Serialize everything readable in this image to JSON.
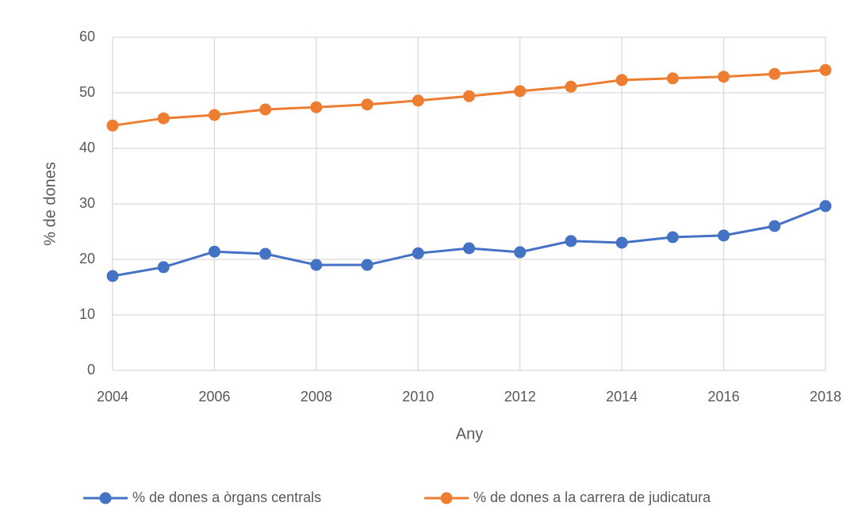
{
  "chart_data": {
    "type": "line",
    "x_label": "Any",
    "y_label": "% de dones",
    "x": [
      2004,
      2005,
      2006,
      2007,
      2008,
      2009,
      2010,
      2011,
      2012,
      2013,
      2014,
      2015,
      2016,
      2017,
      2018
    ],
    "series": [
      {
        "name": "% de dones a òrgans centrals",
        "color": "#4472c4",
        "values": [
          17,
          18.6,
          21.4,
          21,
          19,
          19,
          21.1,
          22,
          21.3,
          23.3,
          23,
          24,
          24.3,
          26,
          29.6
        ]
      },
      {
        "name": "% de dones a la carrera de judicatura",
        "color": "#ed7d31",
        "values": [
          44.1,
          45.4,
          46,
          47,
          47.4,
          47.9,
          48.6,
          49.4,
          50.3,
          51.1,
          52.3,
          52.6,
          52.9,
          53.4,
          54.1
        ]
      }
    ],
    "xlim": [
      2004,
      2018
    ],
    "xticks": [
      2004,
      2006,
      2008,
      2010,
      2012,
      2014,
      2016,
      2018
    ],
    "ylim": [
      0,
      60
    ],
    "yticks": [
      0,
      10,
      20,
      30,
      40,
      50,
      60
    ],
    "grid": true,
    "legend": "bottom"
  }
}
